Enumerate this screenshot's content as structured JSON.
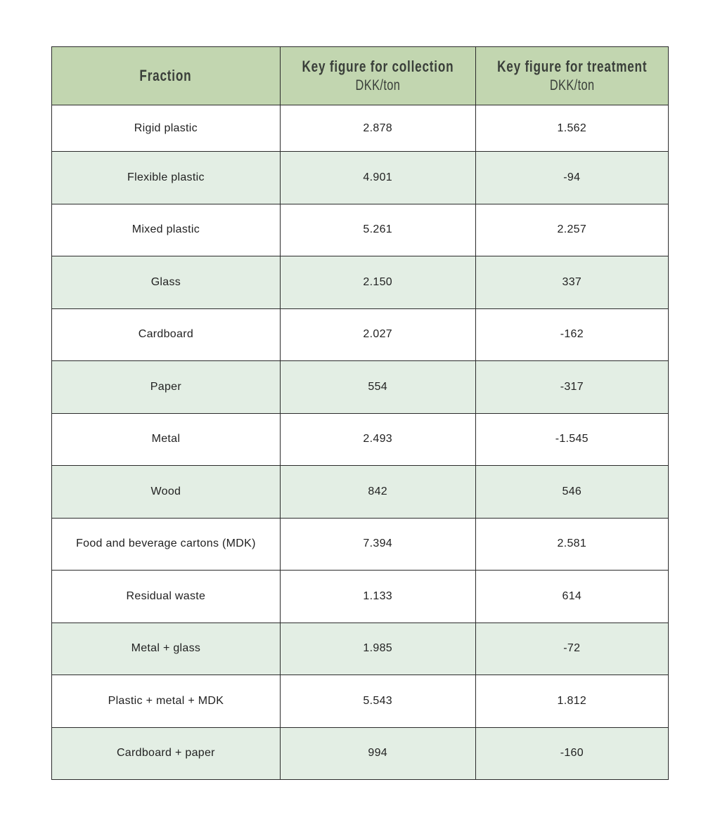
{
  "table": {
    "header": [
      {
        "title": "Fraction",
        "unit": ""
      },
      {
        "title": "Key figure for collection",
        "unit": "DKK/ton"
      },
      {
        "title": "Key figure for treatment",
        "unit": "DKK/ton"
      }
    ],
    "colors": {
      "header_bg": "#c2d6b0",
      "shaded_row_bg": "#e3eee4"
    },
    "rows": [
      {
        "fraction": "Rigid plastic",
        "collection": "2.878",
        "treatment": "1.562",
        "shaded": false
      },
      {
        "fraction": "Flexible plastic",
        "collection": "4.901",
        "treatment": "-94",
        "shaded": true
      },
      {
        "fraction": "Mixed plastic",
        "collection": "5.261",
        "treatment": "2.257",
        "shaded": false
      },
      {
        "fraction": "Glass",
        "collection": "2.150",
        "treatment": "337",
        "shaded": true
      },
      {
        "fraction": "Cardboard",
        "collection": "2.027",
        "treatment": "-162",
        "shaded": false
      },
      {
        "fraction": "Paper",
        "collection": "554",
        "treatment": "-317",
        "shaded": true
      },
      {
        "fraction": "Metal",
        "collection": "2.493",
        "treatment": "-1.545",
        "shaded": false
      },
      {
        "fraction": "Wood",
        "collection": "842",
        "treatment": "546",
        "shaded": true
      },
      {
        "fraction": "Food and beverage cartons (MDK)",
        "collection": "7.394",
        "treatment": "2.581",
        "shaded": false
      },
      {
        "fraction": "Residual waste",
        "collection": "1.133",
        "treatment": "614",
        "shaded": false
      },
      {
        "fraction": "Metal + glass",
        "collection": "1.985",
        "treatment": "-72",
        "shaded": true
      },
      {
        "fraction": "Plastic + metal + MDK",
        "collection": "5.543",
        "treatment": "1.812",
        "shaded": false
      },
      {
        "fraction": "Cardboard + paper",
        "collection": "994",
        "treatment": "-160",
        "shaded": true
      }
    ]
  }
}
